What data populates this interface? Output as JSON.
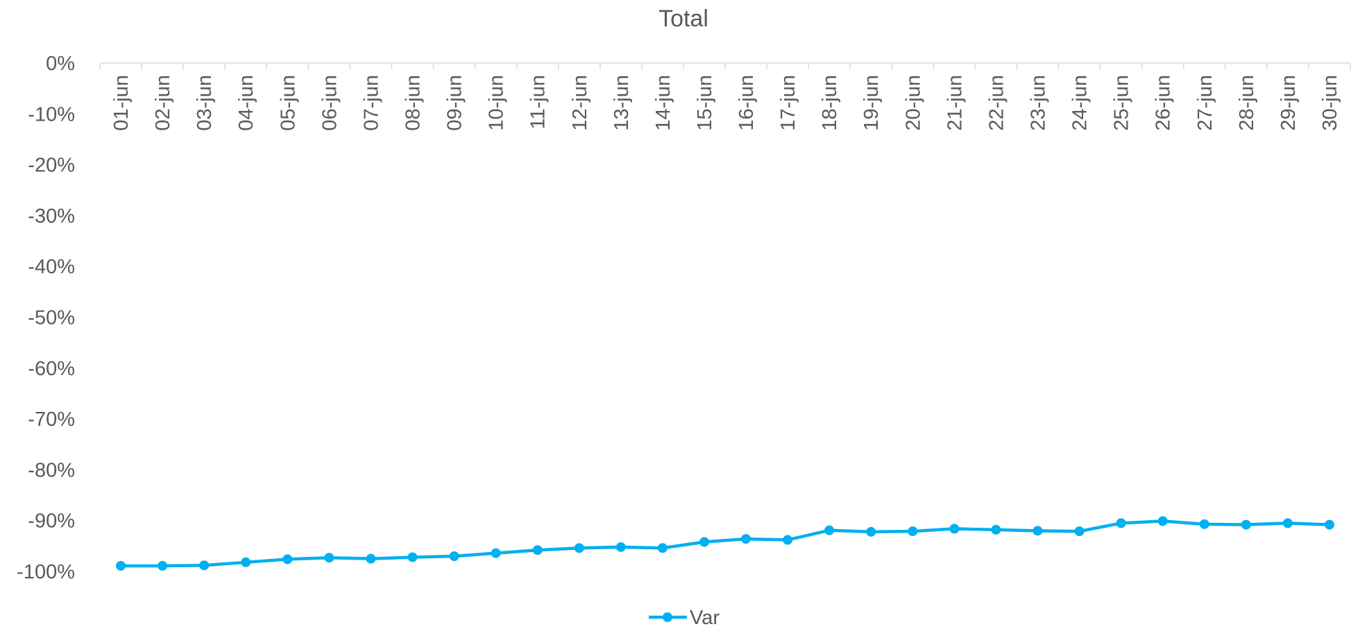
{
  "chart_data": {
    "type": "line",
    "title": "Total",
    "xlabel": "",
    "ylabel": "",
    "categories": [
      "01-jun",
      "02-jun",
      "03-jun",
      "04-jun",
      "05-jun",
      "06-jun",
      "07-jun",
      "08-jun",
      "09-jun",
      "10-jun",
      "11-jun",
      "12-jun",
      "13-jun",
      "14-jun",
      "15-jun",
      "16-jun",
      "17-jun",
      "18-jun",
      "19-jun",
      "20-jun",
      "21-jun",
      "22-jun",
      "23-jun",
      "24-jun",
      "25-jun",
      "26-jun",
      "27-jun",
      "28-jun",
      "29-jun",
      "30-jun"
    ],
    "series": [
      {
        "name": "Var",
        "color": "#00b0f0",
        "values": [
          -98.9,
          -98.9,
          -98.8,
          -98.2,
          -97.6,
          -97.3,
          -97.5,
          -97.2,
          -97.0,
          -96.4,
          -95.8,
          -95.4,
          -95.2,
          -95.4,
          -94.2,
          -93.6,
          -93.8,
          -91.9,
          -92.2,
          -92.1,
          -91.6,
          -91.8,
          -92.0,
          -92.1,
          -90.5,
          -90.1,
          -90.7,
          -90.8,
          -90.5,
          -90.8
        ]
      }
    ],
    "ylim": [
      -100,
      0
    ],
    "yticks": [
      "0%",
      "-10%",
      "-20%",
      "-30%",
      "-40%",
      "-50%",
      "-60%",
      "-70%",
      "-80%",
      "-90%",
      "-100%"
    ],
    "x_axis_position": "top",
    "grid": false,
    "legend": "bottom",
    "axis_color": "#d9d9d9"
  }
}
